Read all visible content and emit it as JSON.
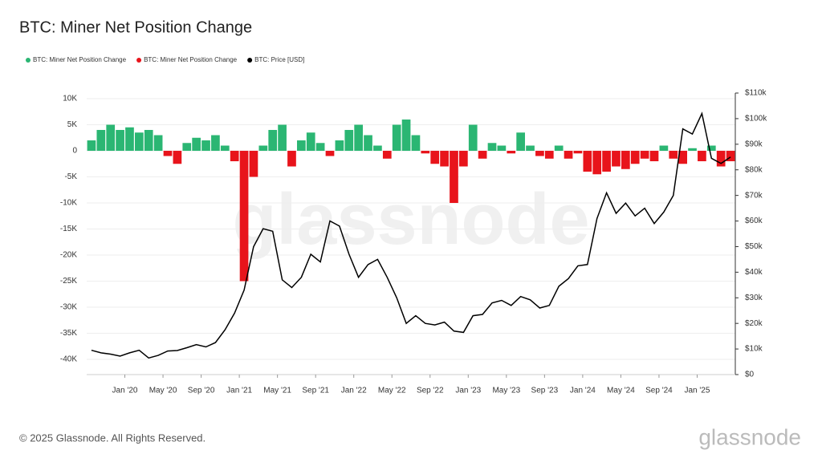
{
  "chart_data": {
    "type": "bar_line",
    "title": "BTC: Miner Net Position Change",
    "watermark": "glassnode",
    "footer": "© 2025 Glassnode. All Rights Reserved.",
    "logo": "glassnode",
    "x": [
      "2019-09",
      "2019-10",
      "2019-11",
      "2019-12",
      "2020-01",
      "2020-02",
      "2020-03",
      "2020-04",
      "2020-05",
      "2020-06",
      "2020-07",
      "2020-08",
      "2020-09",
      "2020-10",
      "2020-11",
      "2020-12",
      "2021-01",
      "2021-02",
      "2021-03",
      "2021-04",
      "2021-05",
      "2021-06",
      "2021-07",
      "2021-08",
      "2021-09",
      "2021-10",
      "2021-11",
      "2021-12",
      "2022-01",
      "2022-02",
      "2022-03",
      "2022-04",
      "2022-05",
      "2022-06",
      "2022-07",
      "2022-08",
      "2022-09",
      "2022-10",
      "2022-11",
      "2022-12",
      "2023-01",
      "2023-02",
      "2023-03",
      "2023-04",
      "2023-05",
      "2023-06",
      "2023-07",
      "2023-08",
      "2023-09",
      "2023-10",
      "2023-11",
      "2023-12",
      "2024-01",
      "2024-02",
      "2024-03",
      "2024-04",
      "2024-05",
      "2024-06",
      "2024-07",
      "2024-08",
      "2024-09",
      "2024-10",
      "2024-11",
      "2024-12",
      "2025-01",
      "2025-02",
      "2025-03",
      "2025-04"
    ],
    "xlim": [
      "2019-09",
      "2025-05"
    ],
    "xticks": [
      {
        "value": "2020-01",
        "label": "Jan '20"
      },
      {
        "value": "2020-05",
        "label": "May '20"
      },
      {
        "value": "2020-09",
        "label": "Sep '20"
      },
      {
        "value": "2021-01",
        "label": "Jan '21"
      },
      {
        "value": "2021-05",
        "label": "May '21"
      },
      {
        "value": "2021-09",
        "label": "Sep '21"
      },
      {
        "value": "2022-01",
        "label": "Jan '22"
      },
      {
        "value": "2022-05",
        "label": "May '22"
      },
      {
        "value": "2022-09",
        "label": "Sep '22"
      },
      {
        "value": "2023-01",
        "label": "Jan '23"
      },
      {
        "value": "2023-05",
        "label": "May '23"
      },
      {
        "value": "2023-09",
        "label": "Sep '23"
      },
      {
        "value": "2024-01",
        "label": "Jan '24"
      },
      {
        "value": "2024-05",
        "label": "May '24"
      },
      {
        "value": "2024-09",
        "label": "Sep '24"
      },
      {
        "value": "2025-01",
        "label": "Jan '25"
      }
    ],
    "ylim": [
      -42920,
      11080
    ],
    "yticks": [
      {
        "value": 10000,
        "label": "10K"
      },
      {
        "value": 5000,
        "label": "5K"
      },
      0,
      {
        "value": -5000,
        "label": "-5K"
      },
      {
        "value": -10000,
        "label": "-10K"
      },
      {
        "value": -15000,
        "label": "-15K"
      },
      {
        "value": -20000,
        "label": "-20K"
      },
      {
        "value": -25000,
        "label": "-25K"
      },
      {
        "value": -30000,
        "label": "-30K"
      },
      {
        "value": -35000,
        "label": "-35K"
      },
      {
        "value": -40000,
        "label": "-40K"
      }
    ],
    "y2lim": [
      0,
      110000
    ],
    "y2ticks": [
      {
        "value": 110000,
        "label": "$110k"
      },
      {
        "value": 100000,
        "label": "$100k"
      },
      {
        "value": 90000,
        "label": "$90k"
      },
      {
        "value": 80000,
        "label": "$80k"
      },
      {
        "value": 70000,
        "label": "$70k"
      },
      {
        "value": 60000,
        "label": "$60k"
      },
      {
        "value": 50000,
        "label": "$50k"
      },
      {
        "value": 40000,
        "label": "$40k"
      },
      {
        "value": 30000,
        "label": "$30k"
      },
      {
        "value": 20000,
        "label": "$20k"
      },
      {
        "value": 10000,
        "label": "$10k"
      },
      {
        "value": 0,
        "label": "$0"
      }
    ],
    "grid": true,
    "series": [
      {
        "name": "BTC: Miner Net Position Change",
        "color": "#2bb673",
        "kind": "bar",
        "values": [
          2000,
          4000,
          5000,
          4000,
          4500,
          3500,
          4000,
          3000,
          null,
          null,
          1500,
          2500,
          2000,
          3000,
          1000,
          null,
          null,
          null,
          1000,
          4000,
          5000,
          null,
          2000,
          3500,
          1500,
          null,
          2000,
          4000,
          5000,
          3000,
          1000,
          null,
          5000,
          6000,
          3000,
          null,
          null,
          null,
          null,
          null,
          5000,
          null,
          1500,
          1000,
          null,
          3500,
          1000,
          null,
          null,
          1000,
          null,
          null,
          null,
          null,
          null,
          null,
          null,
          null,
          null,
          null,
          1000,
          null,
          null,
          500,
          null,
          1000,
          null,
          null
        ]
      },
      {
        "name": "BTC: Miner Net Position Change",
        "color": "#e8141b",
        "kind": "bar",
        "values": [
          null,
          null,
          null,
          null,
          null,
          null,
          null,
          null,
          -1000,
          -2500,
          null,
          null,
          null,
          null,
          null,
          -2000,
          -25000,
          -5000,
          null,
          null,
          null,
          -3000,
          null,
          null,
          null,
          -1000,
          null,
          null,
          null,
          null,
          null,
          -1500,
          null,
          null,
          null,
          -500,
          -2500,
          -3000,
          -10000,
          -3000,
          null,
          -1500,
          null,
          null,
          -500,
          null,
          null,
          -1000,
          -1500,
          null,
          -1500,
          -500,
          -4000,
          -4500,
          -4000,
          -3000,
          -3500,
          -2500,
          -1500,
          -2000,
          null,
          -1500,
          -2500,
          null,
          -2000,
          null,
          -3000,
          -2000
        ]
      },
      {
        "name": "BTC: Price [USD]",
        "color": "#000000",
        "kind": "line",
        "axis": "y2",
        "values": [
          9500,
          8500,
          8000,
          7200,
          8500,
          9500,
          6500,
          7500,
          9200,
          9400,
          10500,
          11700,
          10800,
          12500,
          17500,
          24000,
          33000,
          50000,
          57000,
          56000,
          37000,
          34000,
          38000,
          47000,
          44000,
          60000,
          58000,
          47000,
          38000,
          43000,
          45000,
          38000,
          30000,
          20000,
          23000,
          20000,
          19400,
          20500,
          17000,
          16500,
          23000,
          23500,
          28000,
          29000,
          27000,
          30500,
          29200,
          26000,
          27000,
          34500,
          37500,
          42500,
          43000,
          61000,
          71000,
          63000,
          67000,
          62000,
          65000,
          59000,
          63500,
          70000,
          96000,
          94000,
          102000,
          84500,
          82500,
          85000
        ]
      }
    ]
  }
}
